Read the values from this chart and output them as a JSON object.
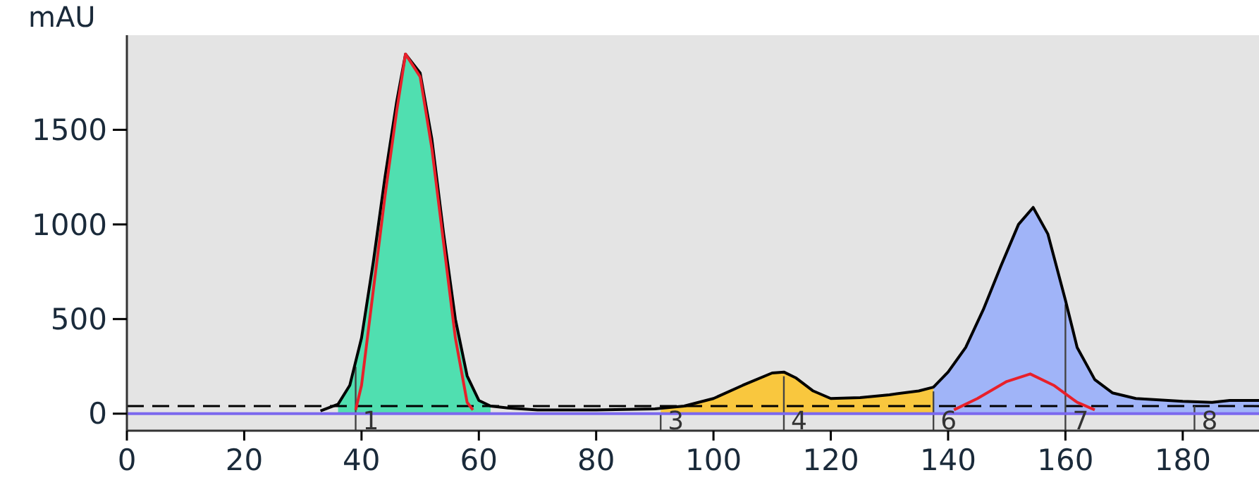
{
  "chart_data": {
    "type": "line",
    "ylabel": "mAU",
    "xlim": [
      0,
      193
    ],
    "ylim": [
      -90,
      2000
    ],
    "xticks": [
      0,
      20,
      40,
      60,
      80,
      100,
      120,
      140,
      160,
      180
    ],
    "yticks": [
      0,
      500,
      1000,
      1500
    ],
    "grid": false,
    "marker": "none",
    "series": [
      {
        "type": "area",
        "color": "#50dfb0",
        "x": [
          36,
          38,
          40,
          42,
          44,
          46,
          47.5,
          50,
          52,
          54,
          56,
          58,
          60,
          62
        ],
        "values": [
          50,
          150,
          400,
          800,
          1250,
          1650,
          1900,
          1800,
          1450,
          950,
          500,
          200,
          70,
          40
        ]
      },
      {
        "type": "area",
        "color": "#f9c73e",
        "x": [
          91,
          95,
          100,
          105,
          110,
          112,
          114,
          117,
          120,
          125,
          130,
          135,
          137.5
        ],
        "values": [
          20,
          40,
          80,
          150,
          215,
          220,
          190,
          120,
          80,
          85,
          100,
          120,
          140
        ]
      },
      {
        "type": "area",
        "color": "#a0b4f8",
        "x": [
          137.5,
          140,
          143,
          146,
          149,
          152,
          154.5,
          157,
          160,
          162,
          165,
          168,
          172,
          180,
          185,
          188,
          193
        ],
        "values": [
          140,
          220,
          350,
          550,
          780,
          1000,
          1090,
          950,
          600,
          350,
          180,
          110,
          80,
          65,
          60,
          70,
          70
        ]
      },
      {
        "color": "#000000",
        "x": [
          33,
          36,
          38,
          40,
          42,
          44,
          46,
          47.5,
          50,
          52,
          54,
          56,
          58,
          60,
          62,
          65,
          70,
          80,
          90,
          95,
          100,
          105,
          110,
          112,
          114,
          117,
          120,
          125,
          130,
          135,
          137.5,
          140,
          143,
          146,
          149,
          152,
          154.5,
          157,
          160,
          162,
          165,
          168,
          172,
          180,
          185,
          188,
          193
        ],
        "values": [
          15,
          50,
          150,
          400,
          800,
          1250,
          1650,
          1900,
          1800,
          1450,
          950,
          500,
          200,
          70,
          40,
          30,
          20,
          20,
          25,
          40,
          80,
          150,
          215,
          220,
          190,
          120,
          80,
          85,
          100,
          120,
          140,
          220,
          350,
          550,
          780,
          1000,
          1090,
          950,
          600,
          350,
          180,
          110,
          80,
          65,
          60,
          70,
          70
        ]
      },
      {
        "color": "#7b68ee",
        "x": [
          0,
          193
        ],
        "values": [
          0,
          0
        ]
      },
      {
        "color": "#e8202a",
        "x": [
          39,
          40,
          42,
          44,
          46,
          47.5,
          50,
          52,
          54,
          56,
          58,
          59,
          100,
          141,
          145,
          150,
          154,
          158,
          162,
          165
        ],
        "values": [
          20,
          150,
          650,
          1150,
          1600,
          1900,
          1780,
          1400,
          900,
          400,
          60,
          20,
          null,
          20,
          80,
          170,
          210,
          150,
          60,
          20
        ]
      }
    ],
    "ref_lines": [
      {
        "axis": "y",
        "value": 40,
        "line_style": "dashed",
        "color": "#000000"
      }
    ],
    "annotations": [
      {
        "text": "1",
        "x": 39,
        "y": 270
      },
      {
        "text": "3",
        "x": 91,
        "y": 22
      },
      {
        "text": "4",
        "x": 112,
        "y": 220
      },
      {
        "text": "6",
        "x": 137.5,
        "y": 140
      },
      {
        "text": "7",
        "x": 160,
        "y": 600
      },
      {
        "text": "8",
        "x": 182,
        "y": 62
      }
    ]
  }
}
